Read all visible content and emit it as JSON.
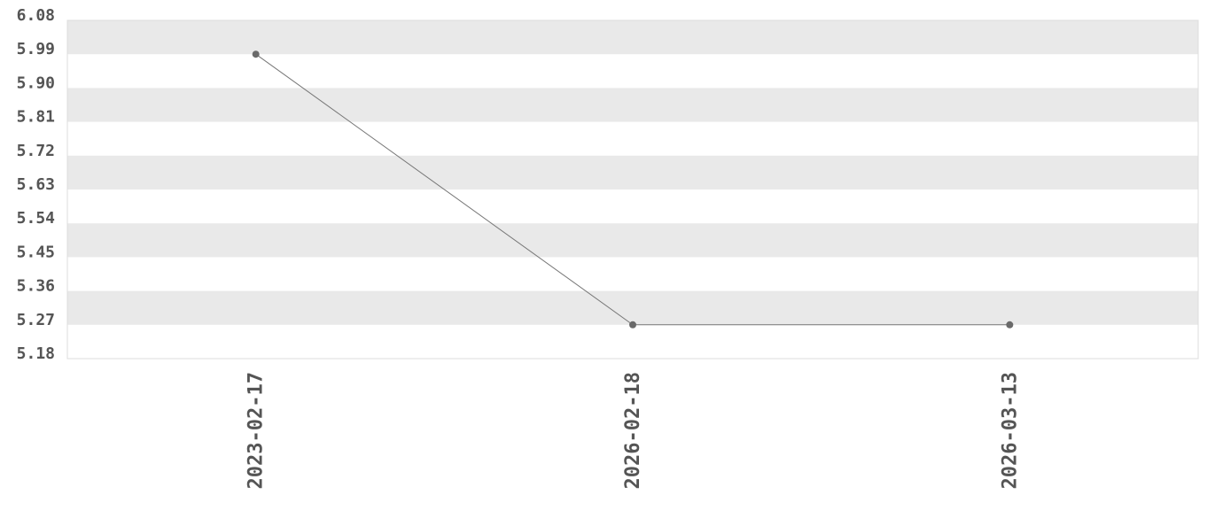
{
  "chart_data": {
    "type": "line",
    "categories": [
      "2023-02-17",
      "2026-02-18",
      "2026-03-13"
    ],
    "series": [
      {
        "values": [
          5.99,
          5.27,
          5.27
        ]
      }
    ],
    "yticks": [
      "6.08",
      "5.99",
      "5.90",
      "5.81",
      "5.72",
      "5.63",
      "5.54",
      "5.45",
      "5.36",
      "5.27",
      "5.18"
    ],
    "ylim": [
      5.18,
      6.08
    ],
    "grid": "alternating horizontal bands",
    "colors": {
      "band": "#e9e9e9",
      "line": "#777777",
      "marker": "#6a6a6a",
      "text": "#555555",
      "border": "#dddddd"
    }
  }
}
